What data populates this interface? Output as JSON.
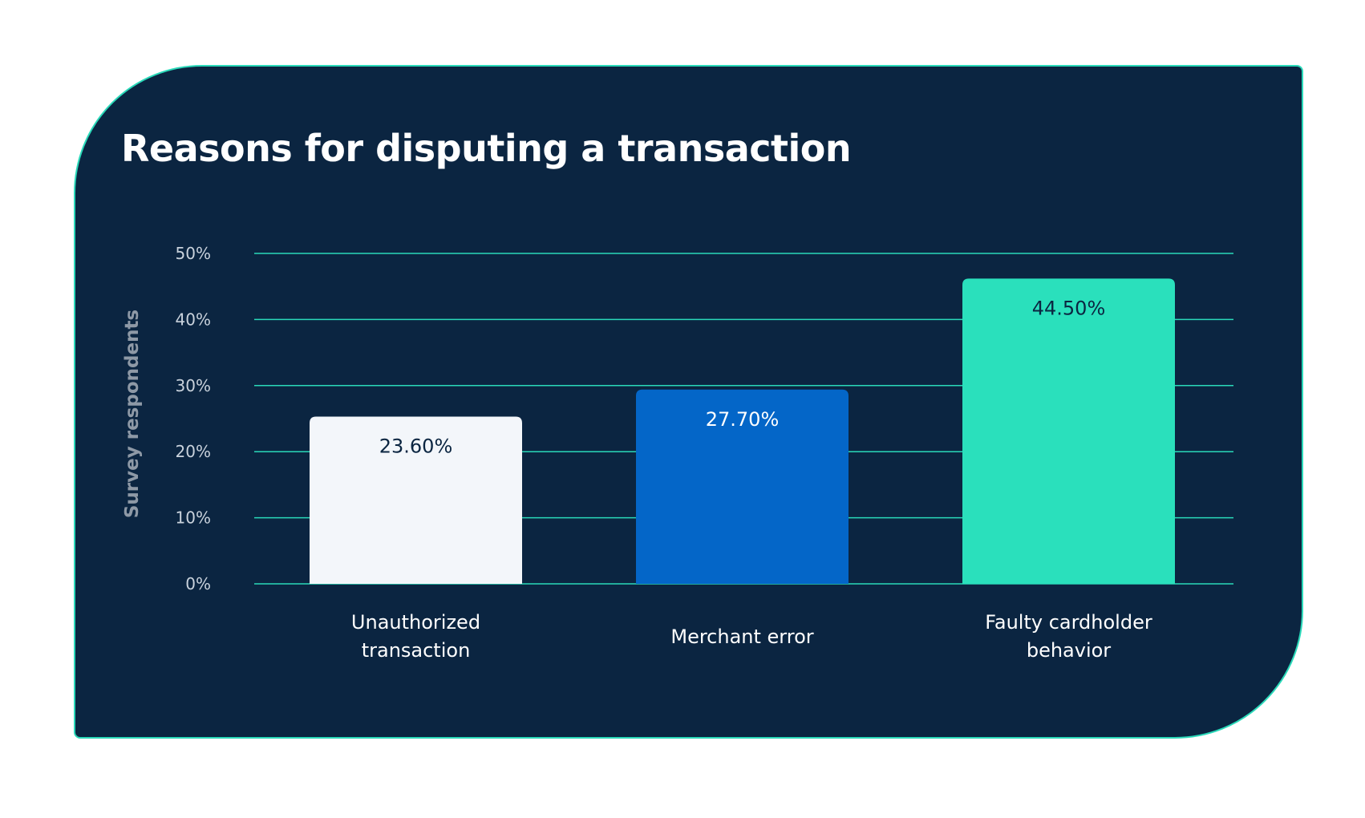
{
  "colors": {
    "background": "#0b2541",
    "accent": "#2ad9b9",
    "gridline": "#2ad9b9",
    "title": "#ffffff"
  },
  "chart_data": {
    "type": "bar",
    "title": "Reasons for disputing a transaction",
    "xlabel": "",
    "ylabel": "Survey respondents",
    "ylim": [
      0,
      50
    ],
    "yticks": [
      0,
      10,
      20,
      30,
      40,
      50
    ],
    "ytick_labels": [
      "0%",
      "10%",
      "20%",
      "30%",
      "40%",
      "50%"
    ],
    "grid": true,
    "categories": [
      [
        "Unauthorized",
        "transaction"
      ],
      [
        "Merchant error"
      ],
      [
        "Faulty cardholder",
        "behavior"
      ]
    ],
    "values": [
      23.6,
      27.7,
      44.5
    ],
    "data_labels": [
      "23.60%",
      "27.70%",
      "44.50%"
    ],
    "bar_colors": [
      "#f3f6fa",
      "#0466c8",
      "#2ae0bc"
    ],
    "label_colors": [
      "#0b2541",
      "#ffffff",
      "#0b2541"
    ]
  }
}
